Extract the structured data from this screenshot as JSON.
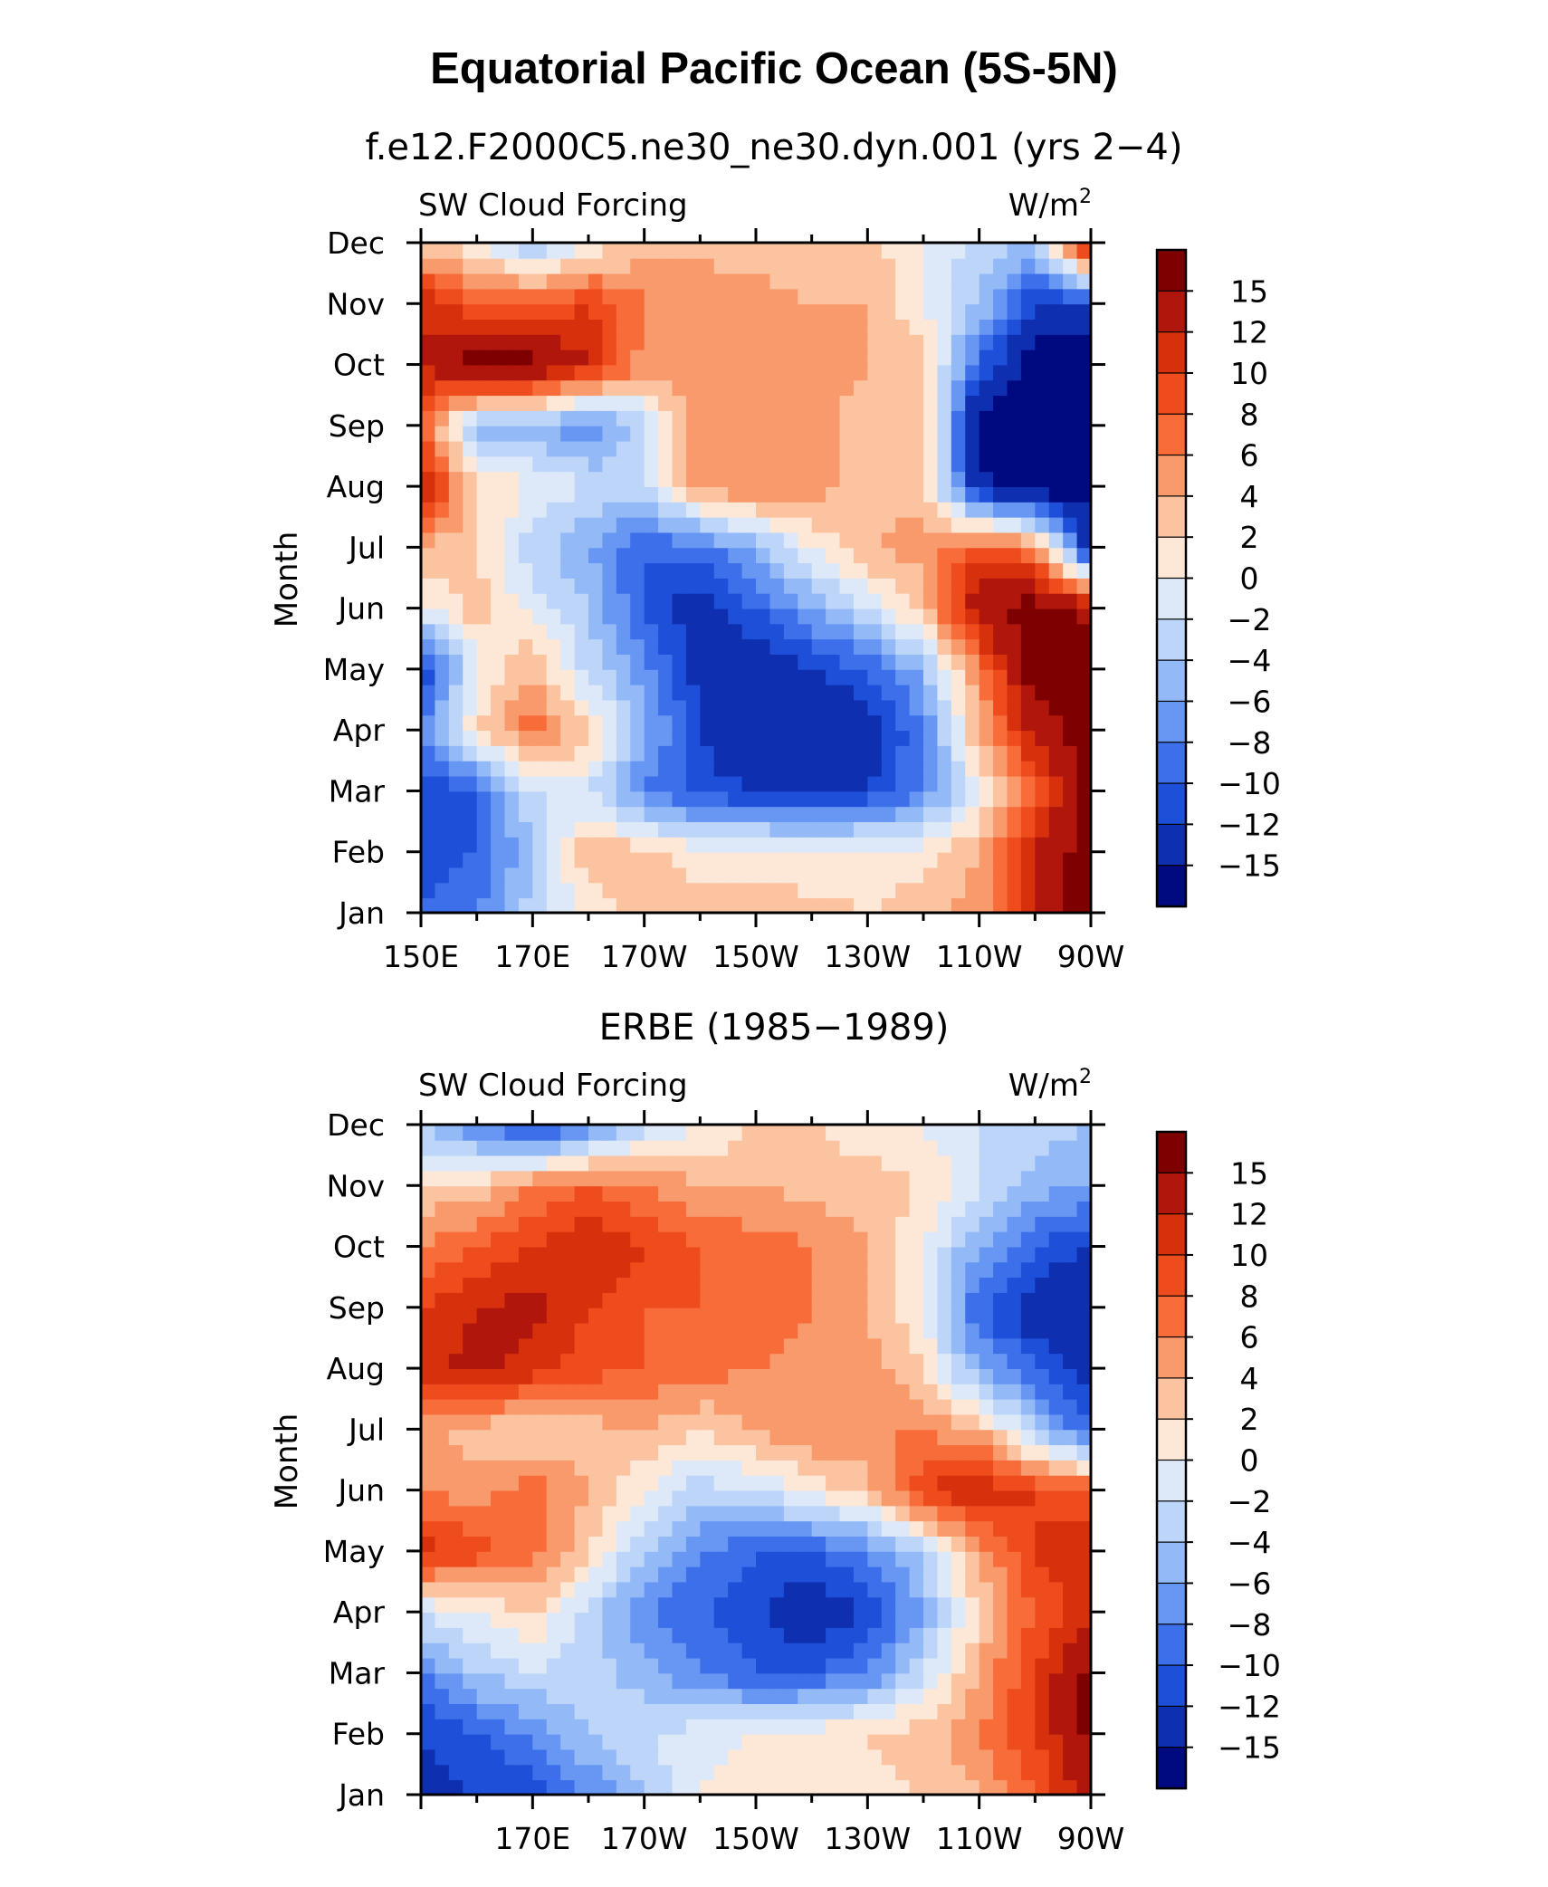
{
  "title": "Equatorial Pacific Ocean (5S-5N)",
  "units_super": "2",
  "chart_data": [
    {
      "type": "heatmap",
      "title": "f.e12.F2000C5.ne30_ne30.dyn.001 (yrs 2−4)",
      "left_label": "SW Cloud Forcing",
      "right_label": "W/m",
      "ylabel": "Month",
      "xlabel": "",
      "x_range": [
        150,
        270
      ],
      "x_tick_values": [
        150,
        170,
        190,
        210,
        230,
        250,
        270
      ],
      "x_tick_labels": [
        "150E",
        "170E",
        "170W",
        "150W",
        "130W",
        "110W",
        "90W"
      ],
      "y_tick_labels": [
        "Jan",
        "Feb",
        "Mar",
        "Apr",
        "May",
        "Jun",
        "Jul",
        "Aug",
        "Sep",
        "Oct",
        "Nov",
        "Dec"
      ],
      "longitudes": [
        150,
        160,
        170,
        180,
        190,
        200,
        210,
        220,
        230,
        240,
        250,
        260,
        270
      ],
      "values": [
        [
          -10,
          -8,
          -3,
          0,
          3,
          3,
          3,
          3,
          2,
          3,
          5,
          12,
          17
        ],
        [
          -12,
          -10,
          -4,
          4,
          3,
          1,
          1,
          0,
          1,
          1,
          4,
          12,
          17
        ],
        [
          -12,
          -10,
          -2,
          -2,
          -8,
          -11,
          -12,
          -12,
          -12,
          -8,
          0,
          8,
          16
        ],
        [
          -8,
          2,
          7,
          3,
          -5,
          -12,
          -15,
          -15,
          -14,
          -8,
          4,
          13,
          17
        ],
        [
          -13,
          0,
          4,
          -3,
          -7,
          -13,
          -14,
          -12,
          -10,
          -5,
          6,
          17,
          17
        ],
        [
          0,
          3,
          -1,
          -4,
          -10,
          -14,
          -10,
          -6,
          -2,
          3,
          14,
          17,
          14
        ],
        [
          4,
          2,
          -3,
          -6,
          -10,
          -9,
          -5,
          0,
          4,
          5,
          9,
          6,
          -14
        ],
        [
          13,
          2,
          0,
          -2,
          -2,
          5,
          6,
          5,
          3,
          3,
          -14,
          -17,
          -17
        ],
        [
          8,
          -5,
          -5,
          -8,
          -3,
          5,
          6,
          5,
          3,
          4,
          -17,
          -17,
          -17
        ],
        [
          12,
          17,
          16,
          12,
          5,
          6,
          6,
          5,
          4,
          3,
          -10,
          -17,
          -17
        ],
        [
          12,
          8,
          8,
          10,
          6,
          6,
          5,
          4,
          4,
          0,
          -4,
          -12,
          -12
        ],
        [
          3,
          0,
          -4,
          0,
          3,
          3,
          3,
          2,
          3,
          0,
          -3,
          -4,
          13
        ]
      ]
    },
    {
      "type": "heatmap",
      "title": "ERBE (1985−1989)",
      "left_label": "SW Cloud Forcing",
      "right_label": "W/m",
      "ylabel": "Month",
      "xlabel": "",
      "x_range": [
        150,
        270
      ],
      "x_tick_values": [
        150,
        170,
        190,
        210,
        230,
        250,
        270
      ],
      "x_tick_labels": [
        "",
        "170E",
        "170W",
        "150W",
        "130W",
        "110W",
        "90W"
      ],
      "y_tick_labels": [
        "Jan",
        "Feb",
        "Mar",
        "Apr",
        "May",
        "Jun",
        "Jul",
        "Aug",
        "Sep",
        "Oct",
        "Nov",
        "Dec"
      ],
      "longitudes": [
        150,
        160,
        170,
        180,
        190,
        200,
        210,
        220,
        230,
        240,
        250,
        260,
        270
      ],
      "values": [
        [
          -13,
          -12,
          -11,
          -8,
          -4,
          0,
          1,
          1,
          1,
          2,
          4,
          8,
          13
        ],
        [
          -12,
          -10,
          -8,
          -4,
          -2,
          -1,
          0,
          1,
          2,
          3,
          6,
          10,
          16
        ],
        [
          -8,
          -4,
          -2,
          -3,
          -5,
          -8,
          -10,
          -10,
          -8,
          -2,
          4,
          10,
          16
        ],
        [
          -2,
          0,
          2,
          -3,
          -8,
          -10,
          -12,
          -14,
          -12,
          -6,
          2,
          8,
          12
        ],
        [
          11,
          9,
          7,
          2,
          -4,
          -8,
          -10,
          -10,
          -8,
          -3,
          5,
          10,
          12
        ],
        [
          6,
          5,
          7,
          4,
          0,
          -3,
          -2,
          1,
          3,
          10,
          12,
          10,
          8
        ],
        [
          5,
          3,
          2,
          3,
          4,
          2,
          4,
          6,
          6,
          6,
          4,
          -4,
          -10
        ],
        [
          11,
          13,
          11,
          9,
          8,
          7,
          6,
          5,
          5,
          2,
          -6,
          -10,
          -13
        ],
        [
          10,
          12,
          13,
          10,
          8,
          8,
          7,
          6,
          4,
          0,
          -10,
          -14,
          -15
        ],
        [
          6,
          8,
          10,
          12,
          10,
          8,
          7,
          6,
          4,
          0,
          -6,
          -10,
          -12
        ],
        [
          2,
          3,
          6,
          8,
          6,
          4,
          4,
          3,
          3,
          2,
          -2,
          -5,
          -6
        ],
        [
          -4,
          -8,
          -12,
          -8,
          -3,
          0,
          2,
          2,
          1,
          0,
          -2,
          -3,
          -4
        ]
      ]
    }
  ],
  "colorbar": {
    "labels": [
      "15",
      "12",
      "10",
      "8",
      "6",
      "4",
      "2",
      "0",
      "−2",
      "−4",
      "−6",
      "−8",
      "−10",
      "−12",
      "−15"
    ],
    "colors": [
      "#7f0000",
      "#b0160b",
      "#d6300d",
      "#ef4c1d",
      "#f86c3a",
      "#f99a6c",
      "#fbc3a0",
      "#fde8d7",
      "#dde9f8",
      "#bcd5f8",
      "#93b9f7",
      "#6797f3",
      "#3c6fe9",
      "#1e4fd8",
      "#0e2fb0",
      "#000a80"
    ],
    "bounds": [
      15,
      12,
      10,
      8,
      6,
      4,
      2,
      0,
      -2,
      -4,
      -6,
      -8,
      -10,
      -12,
      -15
    ]
  }
}
